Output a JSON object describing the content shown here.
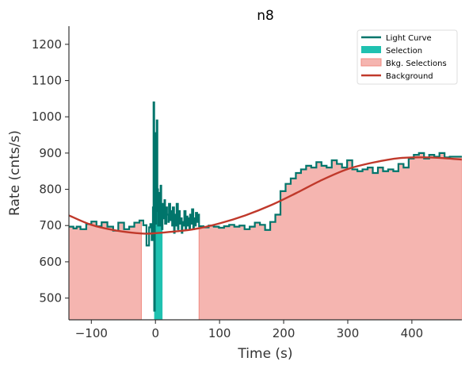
{
  "chart_data": {
    "type": "line",
    "title": "n8",
    "xlabel": "Time (s)",
    "ylabel": "Rate (cnts/s)",
    "xlim": [
      -135,
      478
    ],
    "ylim": [
      440,
      1250
    ],
    "xticks": [
      -100,
      0,
      100,
      200,
      300,
      400
    ],
    "xtick_labels": [
      "−100",
      "0",
      "100",
      "200",
      "300",
      "400"
    ],
    "yticks": [
      500,
      600,
      700,
      800,
      900,
      1000,
      1100,
      1200
    ],
    "ytick_labels": [
      "500",
      "600",
      "700",
      "800",
      "900",
      "1000",
      "1100",
      "1200"
    ],
    "grid": false,
    "legend_position": "top-right",
    "legend": [
      {
        "label": "Light Curve",
        "kind": "line",
        "color": "#00756b"
      },
      {
        "label": "Selection",
        "kind": "patch",
        "color": "#1fc1b0"
      },
      {
        "label": "Bkg. Selections",
        "kind": "patch",
        "color": "#f5b5b0"
      },
      {
        "label": "Background",
        "kind": "line",
        "color": "#c0392b"
      }
    ],
    "colors": {
      "light_curve": "#00756b",
      "selection": "#1fc1b0",
      "bkg_selection": "#f5b5b0",
      "bkg_selection_edge": "#f08a80",
      "background": "#c0392b"
    },
    "selection": [
      -2,
      11
    ],
    "bkg_selections": [
      [
        -135,
        -22
      ],
      [
        68,
        478
      ]
    ],
    "background_fit": {
      "x": [
        -135,
        -100,
        -60,
        -20,
        0,
        20,
        60,
        100,
        140,
        180,
        220,
        260,
        300,
        340,
        380,
        420,
        450,
        478
      ],
      "y": [
        728,
        702,
        686,
        678,
        679,
        682,
        690,
        706,
        728,
        756,
        790,
        826,
        856,
        874,
        886,
        888,
        886,
        882
      ]
    },
    "light_curve": {
      "x": [
        -135,
        -128,
        -123,
        -117,
        -108,
        -100,
        -92,
        -84,
        -75,
        -66,
        -58,
        -49,
        -41,
        -33,
        -25,
        -19,
        -14,
        -10,
        -8,
        -6,
        -4,
        -3,
        -2,
        -1,
        0,
        1,
        2,
        3,
        4,
        5,
        6,
        7,
        8,
        9,
        10,
        11,
        12,
        14,
        15,
        17,
        18,
        20,
        21,
        23,
        24,
        26,
        27,
        29,
        30,
        32,
        33,
        35,
        36,
        38,
        39,
        41,
        42,
        44,
        45,
        47,
        48,
        50,
        51,
        53,
        54,
        56,
        57,
        59,
        60,
        62,
        63,
        65,
        66,
        68,
        75,
        83,
        91,
        99,
        107,
        115,
        123,
        131,
        139,
        147,
        155,
        163,
        171,
        179,
        187,
        195,
        203,
        211,
        219,
        227,
        235,
        243,
        251,
        259,
        267,
        275,
        283,
        291,
        299,
        307,
        315,
        323,
        331,
        339,
        347,
        355,
        363,
        371,
        379,
        387,
        395,
        403,
        411,
        419,
        427,
        435,
        443,
        451,
        459,
        467,
        478
      ],
      "y": [
        697,
        692,
        697,
        690,
        704,
        711,
        698,
        709,
        697,
        686,
        708,
        690,
        697,
        708,
        714,
        701,
        645,
        695,
        704,
        660,
        750,
        1040,
        465,
        955,
        705,
        740,
        990,
        800,
        700,
        770,
        790,
        700,
        810,
        720,
        690,
        760,
        720,
        770,
        705,
        750,
        730,
        710,
        760,
        715,
        740,
        700,
        750,
        680,
        730,
        700,
        760,
        690,
        740,
        705,
        720,
        680,
        710,
        700,
        740,
        690,
        725,
        700,
        720,
        690,
        730,
        705,
        745,
        690,
        720,
        700,
        735,
        710,
        730,
        698,
        695,
        700,
        697,
        694,
        698,
        702,
        697,
        700,
        690,
        697,
        708,
        702,
        688,
        710,
        730,
        795,
        815,
        830,
        845,
        855,
        865,
        860,
        875,
        865,
        860,
        880,
        870,
        860,
        880,
        855,
        850,
        855,
        860,
        845,
        860,
        850,
        855,
        850,
        870,
        860,
        885,
        895,
        900,
        885,
        895,
        890,
        900,
        888,
        890,
        890,
        890
      ]
    }
  }
}
